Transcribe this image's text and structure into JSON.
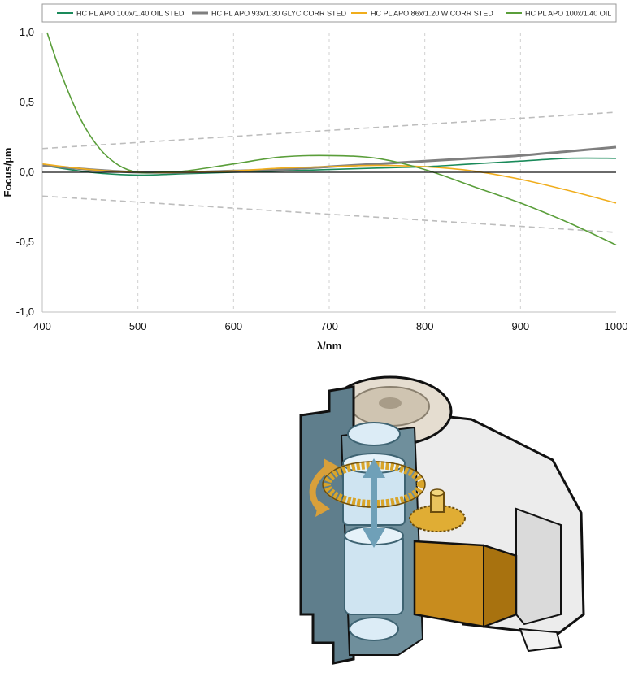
{
  "chart_data": {
    "type": "line",
    "xlabel": "λ/nm",
    "ylabel": "Focus/µm",
    "xlim": [
      400,
      1000
    ],
    "ylim": [
      -1.0,
      1.0
    ],
    "x_ticks": [
      "400",
      "500",
      "600",
      "700",
      "800",
      "900",
      "1000"
    ],
    "y_ticks": [
      "1,0",
      "0,5",
      "0,0",
      "-0,5",
      "-1,0"
    ],
    "x_tick_values": [
      400,
      500,
      600,
      700,
      800,
      900,
      1000
    ],
    "y_tick_values": [
      1.0,
      0.5,
      0.0,
      -0.5,
      -1.0
    ],
    "grid": "vertical dashed",
    "legend_position": "top",
    "series": [
      {
        "name": "HC PL APO 100x/1.40 OIL STED",
        "color": "#1a8a5a",
        "width": 1.6,
        "x": [
          400,
          450,
          500,
          550,
          600,
          650,
          700,
          750,
          800,
          850,
          900,
          950,
          1000
        ],
        "y": [
          0.05,
          0.0,
          -0.02,
          -0.01,
          0.0,
          0.01,
          0.02,
          0.03,
          0.04,
          0.06,
          0.08,
          0.1,
          0.1
        ]
      },
      {
        "name": "HC PL APO 93x/1.30 GLYC CORR STED",
        "color": "#7f7f7f",
        "width": 3,
        "x": [
          400,
          450,
          500,
          550,
          600,
          650,
          700,
          750,
          800,
          850,
          900,
          950,
          1000
        ],
        "y": [
          0.05,
          0.02,
          0.0,
          0.0,
          0.01,
          0.02,
          0.04,
          0.06,
          0.08,
          0.1,
          0.12,
          0.15,
          0.18
        ]
      },
      {
        "name": "HC PL APO 86x/1.20 W CORR STED",
        "color": "#f0ad1c",
        "width": 1.6,
        "x": [
          400,
          450,
          500,
          550,
          600,
          650,
          700,
          750,
          800,
          850,
          900,
          950,
          1000
        ],
        "y": [
          0.06,
          0.02,
          0.0,
          0.0,
          0.01,
          0.03,
          0.04,
          0.05,
          0.04,
          0.01,
          -0.05,
          -0.13,
          -0.22
        ]
      },
      {
        "name": "HC PL APO 100x/1.40 OIL",
        "color": "#5a9e3a",
        "width": 1.6,
        "x": [
          405,
          420,
          440,
          460,
          480,
          500,
          520,
          550,
          600,
          650,
          700,
          750,
          800,
          850,
          900,
          950,
          1000
        ],
        "y": [
          1.0,
          0.7,
          0.38,
          0.17,
          0.05,
          0.0,
          0.0,
          0.01,
          0.06,
          0.11,
          0.12,
          0.1,
          0.02,
          -0.1,
          -0.22,
          -0.36,
          -0.52
        ]
      }
    ],
    "tolerance_bands": [
      {
        "color": "#bdbdbd",
        "dashed": true,
        "x": [
          400,
          1000
        ],
        "y": [
          0.17,
          0.43
        ]
      },
      {
        "color": "#bdbdbd",
        "dashed": true,
        "x": [
          400,
          1000
        ],
        "y": [
          -0.17,
          -0.43
        ]
      }
    ]
  },
  "illustration": {
    "subject": "correction collar mechanism cutaway",
    "colors": {
      "housing": "#5f7e8c",
      "housing_light": "#e6e6e6",
      "gear": "#d9a52a",
      "lens": "#cfe4f1",
      "arrow": "#6fa0b8",
      "rotate_arrow": "#d9a03a"
    }
  }
}
